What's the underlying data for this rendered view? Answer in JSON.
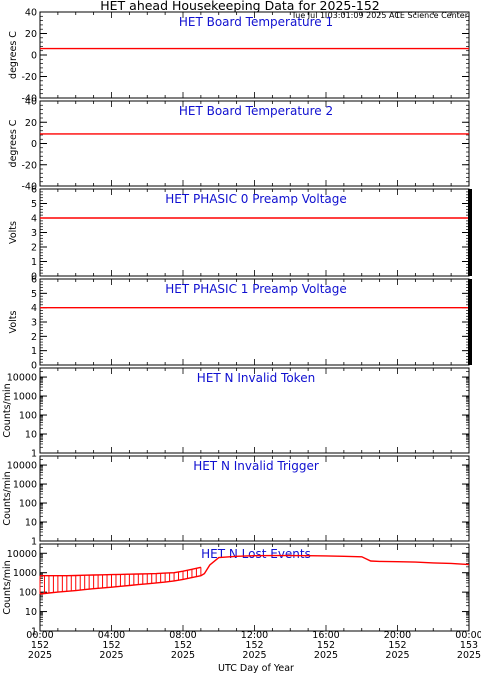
{
  "title": "HET ahead Housekeeping Data for 2025-152",
  "timestamp": "Tue Jul  1 03:01:09 2025 ACE Science Center",
  "x_axis": {
    "label": "UTC Day of Year",
    "range_hours": [
      0,
      24
    ],
    "ticks": [
      {
        "hour": 0,
        "lines": [
          "00:00",
          "152",
          "2025"
        ]
      },
      {
        "hour": 4,
        "lines": [
          "04:00",
          "152",
          "2025"
        ]
      },
      {
        "hour": 8,
        "lines": [
          "08:00",
          "152",
          "2025"
        ]
      },
      {
        "hour": 12,
        "lines": [
          "12:00",
          "152",
          "2025"
        ]
      },
      {
        "hour": 16,
        "lines": [
          "16:00",
          "152",
          "2025"
        ]
      },
      {
        "hour": 20,
        "lines": [
          "20:00",
          "152",
          "2025"
        ]
      },
      {
        "hour": 24,
        "lines": [
          "00:00",
          "153",
          "2025"
        ]
      }
    ]
  },
  "colors": {
    "data": "#ff0000",
    "panel_title": "#1010d0",
    "axis": "#000000"
  },
  "chart_data": [
    {
      "type": "line",
      "title": "HET Board Temperature 1",
      "ylabel": "degrees C",
      "ylim": [
        -40,
        40
      ],
      "yscale": "linear",
      "yticks": [
        -40,
        -20,
        0,
        20,
        40
      ],
      "series": [
        {
          "x": [
            0,
            24
          ],
          "y": [
            6,
            6
          ]
        }
      ]
    },
    {
      "type": "line",
      "title": "HET Board Temperature 2",
      "ylabel": "degrees C",
      "ylim": [
        -40,
        40
      ],
      "yscale": "linear",
      "yticks": [
        -40,
        -20,
        0,
        20,
        40
      ],
      "series": [
        {
          "x": [
            0,
            24
          ],
          "y": [
            9,
            9
          ]
        }
      ]
    },
    {
      "type": "line",
      "title": "HET PHASIC 0 Preamp Voltage",
      "ylabel": "Volts",
      "ylim": [
        0,
        6
      ],
      "yscale": "linear",
      "yticks": [
        0,
        1,
        2,
        3,
        4,
        5,
        6
      ],
      "series": [
        {
          "x": [
            0,
            24
          ],
          "y": [
            4,
            4
          ]
        }
      ]
    },
    {
      "type": "line",
      "title": "HET PHASIC 1 Preamp Voltage",
      "ylabel": "Volts",
      "ylim": [
        0,
        6
      ],
      "yscale": "linear",
      "yticks": [
        0,
        1,
        2,
        3,
        4,
        5,
        6
      ],
      "series": [
        {
          "x": [
            0,
            24
          ],
          "y": [
            4,
            4
          ]
        }
      ]
    },
    {
      "type": "line",
      "title": "HET N Invalid Token",
      "ylabel": "Counts/min",
      "ylim": [
        1,
        30000
      ],
      "yscale": "log",
      "yticks": [
        1,
        10,
        100,
        1000,
        10000
      ],
      "series": []
    },
    {
      "type": "line",
      "title": "HET N Invalid Trigger",
      "ylabel": "Counts/min",
      "ylim": [
        1,
        30000
      ],
      "yscale": "log",
      "yticks": [
        1,
        10,
        100,
        1000,
        10000
      ],
      "series": []
    },
    {
      "type": "line",
      "title": "HET N Lost Events",
      "ylabel": "Counts/min",
      "ylim": [
        1,
        30000
      ],
      "yscale": "log",
      "yticks": [
        1,
        10,
        100,
        1000,
        10000
      ],
      "series": [
        {
          "x": [
            0,
            0.5,
            1,
            1.5,
            2,
            2.5,
            3,
            3.5,
            4,
            4.5,
            5,
            5.5,
            6,
            6.5,
            7,
            7.5,
            8,
            8.5,
            9,
            9.2,
            9.5,
            10,
            11,
            12,
            13,
            14,
            15,
            16,
            17,
            18,
            18.5,
            19,
            20,
            21,
            22,
            23,
            24
          ],
          "y": [
            80,
            90,
            100,
            110,
            120,
            135,
            150,
            165,
            180,
            200,
            220,
            245,
            270,
            300,
            330,
            380,
            450,
            560,
            700,
            900,
            2500,
            6000,
            7000,
            7500,
            7600,
            7600,
            7500,
            7300,
            7000,
            6600,
            4000,
            3800,
            3700,
            3500,
            3200,
            3000,
            2600
          ]
        },
        {
          "x": [
            0,
            0.5,
            1,
            1.5,
            2,
            2.5,
            3,
            3.5,
            4,
            4.5,
            5,
            5.5,
            6,
            6.5,
            7,
            7.5,
            8,
            8.5,
            9
          ],
          "y": [
            700,
            700,
            700,
            700,
            720,
            740,
            760,
            780,
            800,
            820,
            840,
            860,
            880,
            900,
            950,
            1000,
            1200,
            1500,
            1900
          ]
        }
      ]
    }
  ]
}
